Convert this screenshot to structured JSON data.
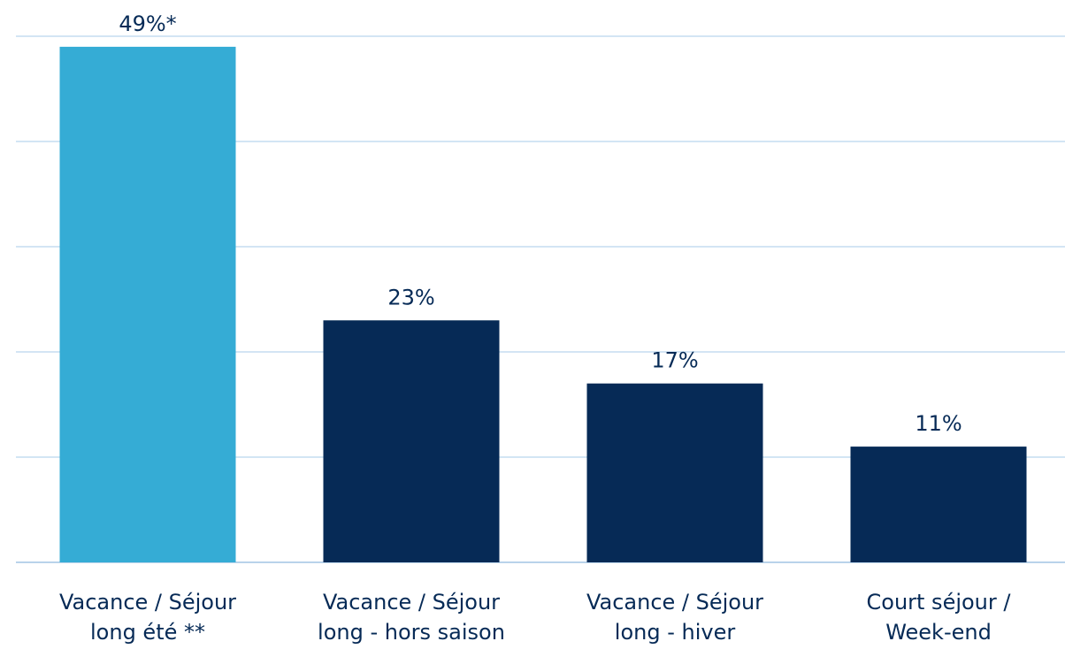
{
  "chart_data": {
    "type": "bar",
    "categories": [
      "Vacance / Séjour\nlong été **",
      "Vacance / Séjour\nlong - hors saison",
      "Vacance / Séjour\nlong - hiver",
      "Court séjour /\nWeek-end"
    ],
    "values": [
      49,
      23,
      17,
      11
    ],
    "value_labels": [
      "49%*",
      "23%",
      "17%",
      "11%"
    ],
    "colors": [
      "#35acd5",
      "#062a56",
      "#062a56",
      "#062a56"
    ],
    "ylim": [
      0,
      50
    ],
    "yticks": [
      0,
      10,
      20,
      30,
      40,
      50
    ],
    "grid": true
  }
}
